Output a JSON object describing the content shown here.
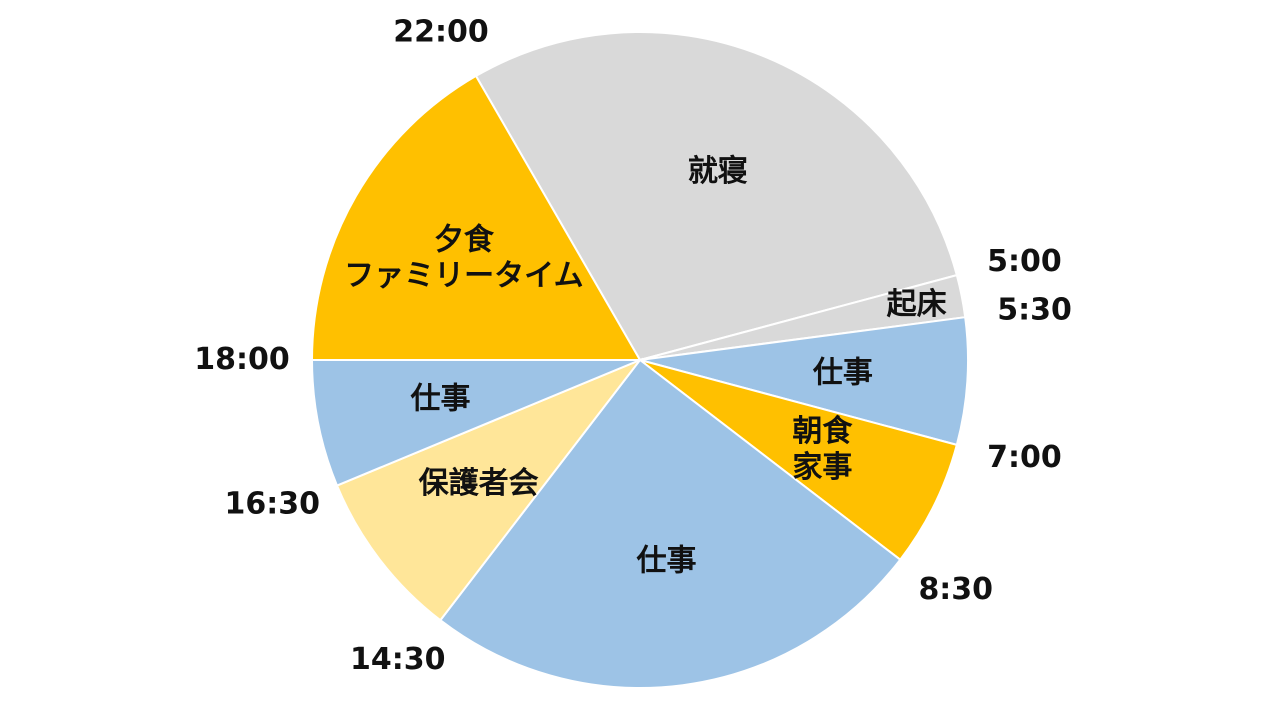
{
  "chart_data": {
    "type": "pie",
    "categories": [
      "就寝",
      "起床",
      "仕事",
      "朝食\n家事",
      "仕事",
      "保護者会",
      "仕事",
      "夕食\nファミリータイム"
    ],
    "values": [
      7,
      0.5,
      1.5,
      1.5,
      6,
      2,
      1.5,
      4
    ],
    "colors": [
      "#d9d9d9",
      "#d9d9d9",
      "#9dc3e6",
      "#ffc000",
      "#9dc3e6",
      "#ffe699",
      "#9dc3e6",
      "#ffc000"
    ],
    "boundary_labels": [
      "22:00",
      "5:00",
      "5:30",
      "7:00",
      "8:30",
      "14:30",
      "16:30",
      "18:00"
    ]
  }
}
